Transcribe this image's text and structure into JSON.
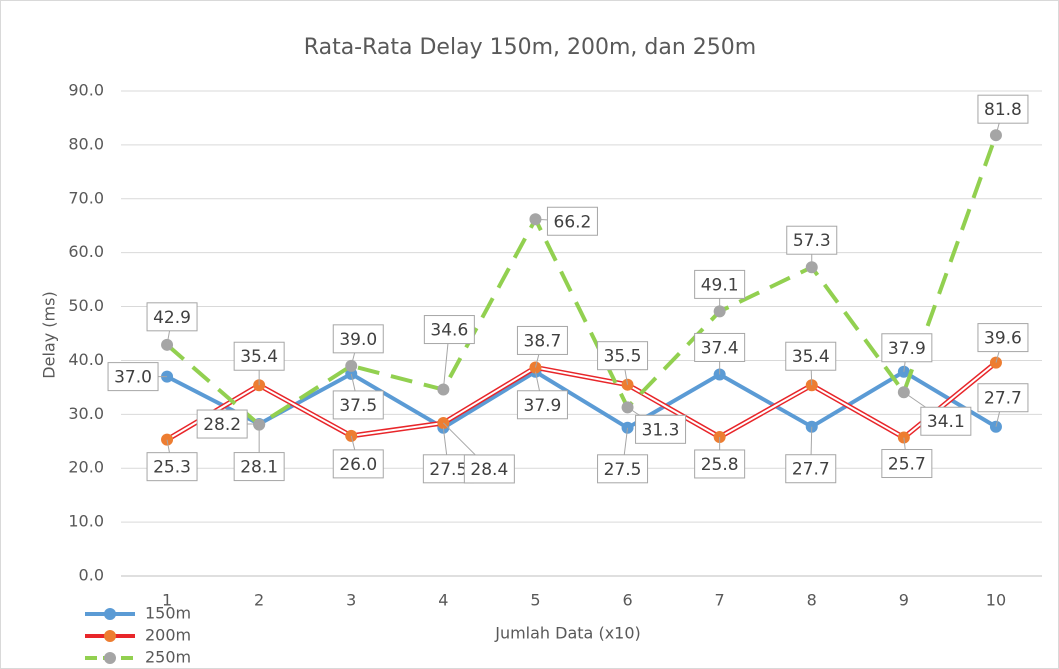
{
  "chart_data": {
    "type": "line",
    "title": "Rata-Rata Delay 150m, 200m, dan 250m",
    "x_label": "Jumlah Data (x10)",
    "y_label": "Delay (ms)",
    "categories": [
      "1",
      "2",
      "3",
      "4",
      "5",
      "6",
      "7",
      "8",
      "9",
      "10"
    ],
    "series": [
      {
        "name": "150m",
        "color": "#5b9bd5",
        "marker_color": "#5b9bd5",
        "values": [
          37.0,
          28.2,
          37.5,
          27.5,
          37.9,
          27.5,
          37.4,
          27.7,
          37.9,
          27.7
        ],
        "value_labels": [
          "37.0",
          "28.2",
          "37.5",
          "27.5",
          "37.9",
          "27.5",
          "37.4",
          "27.7",
          "37.9",
          "27.7"
        ]
      },
      {
        "name": "200m",
        "color": "#e8262a",
        "marker_color": "#ed7d31",
        "values": [
          25.3,
          35.4,
          26.0,
          28.4,
          38.7,
          35.5,
          25.8,
          35.4,
          25.7,
          39.6
        ],
        "value_labels": [
          "25.3",
          "35.4",
          "26.0",
          "28.4",
          "38.7",
          "35.5",
          "25.8",
          "35.4",
          "25.7",
          "39.6"
        ]
      },
      {
        "name": "250m",
        "color": "#92d050",
        "marker_color": "#a5a5a5",
        "dashed": true,
        "values": [
          42.9,
          28.1,
          39.0,
          34.6,
          66.2,
          31.3,
          49.1,
          57.3,
          34.1,
          81.8
        ],
        "value_labels": [
          "42.9",
          "28.1",
          "39.0",
          "34.6",
          "66.2",
          "31.3",
          "49.1",
          "57.3",
          "34.1",
          "81.8"
        ]
      }
    ],
    "ylim": [
      0,
      90
    ],
    "yticks": [
      {
        "value": 0,
        "label": "0.0"
      },
      {
        "value": 10,
        "label": "10.0"
      },
      {
        "value": 20,
        "label": "20.0"
      },
      {
        "value": 30,
        "label": "30.0"
      },
      {
        "value": 40,
        "label": "40.0"
      },
      {
        "value": 50,
        "label": "50.0"
      },
      {
        "value": 60,
        "label": "60.0"
      },
      {
        "value": 70,
        "label": "70.0"
      },
      {
        "value": 80,
        "label": "80.0"
      },
      {
        "value": 90,
        "label": "90.0"
      }
    ],
    "grid": true,
    "legend": "bottom-left"
  }
}
